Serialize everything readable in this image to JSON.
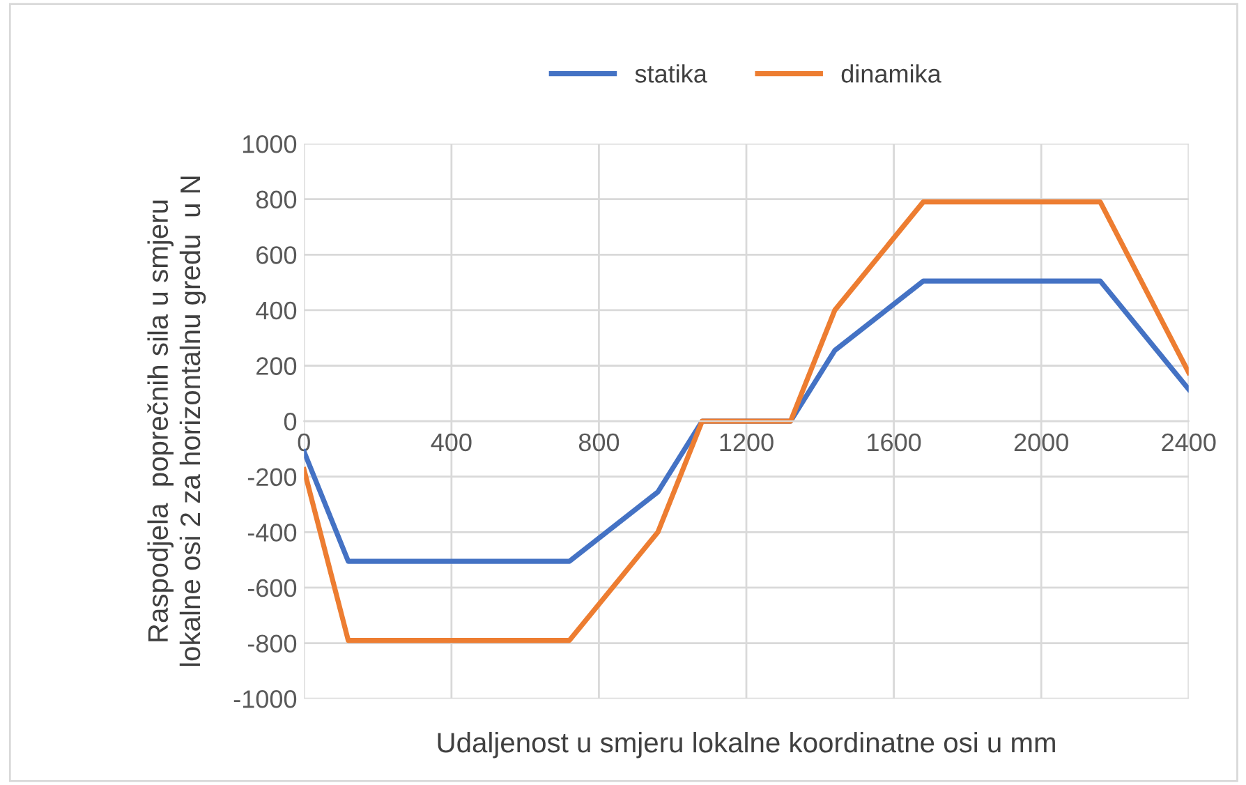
{
  "chart_data": {
    "type": "line",
    "xlabel": "Udaljenost u smjeru lokalne koordinatne osi u mm",
    "ylabel": "Raspodjela  poprečnih sila u smjeru\nlokalne osi 2 za horizontalnu gredu  u N",
    "x": [
      0,
      120,
      720,
      960,
      1080,
      1320,
      1440,
      1680,
      2160,
      2400
    ],
    "series": [
      {
        "name": "statika",
        "color": "#4472c4",
        "values": [
          -110,
          -505,
          -505,
          -255,
          0,
          0,
          255,
          505,
          505,
          115
        ]
      },
      {
        "name": "dinamika",
        "color": "#ed7d31",
        "values": [
          -175,
          -790,
          -790,
          -400,
          0,
          0,
          400,
          790,
          790,
          175
        ]
      }
    ],
    "xlim": [
      0,
      2400
    ],
    "xticks": [
      0,
      400,
      800,
      1200,
      1600,
      2000,
      2400
    ],
    "ylim": [
      -1000,
      1000
    ],
    "yticks": [
      -1000,
      -800,
      -600,
      -400,
      -200,
      0,
      200,
      400,
      600,
      800,
      1000
    ],
    "grid": true,
    "legend": "top",
    "marker": "none",
    "line_style": "solid"
  }
}
